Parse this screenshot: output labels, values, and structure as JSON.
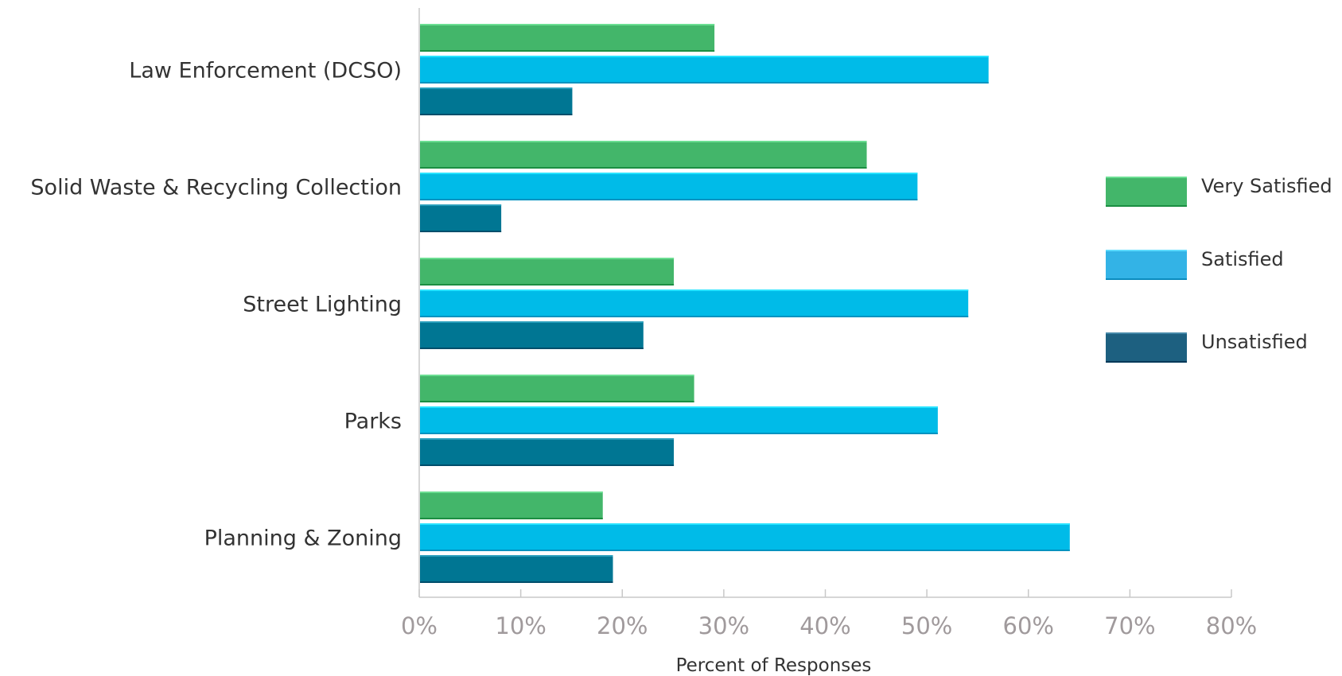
{
  "chart_data": {
    "type": "bar",
    "orientation": "horizontal",
    "categories": [
      "Law Enforcement (DCSO)",
      "Solid Waste & Recycling Collection",
      "Street Lighting",
      "Parks",
      "Planning & Zoning"
    ],
    "series": [
      {
        "name": "Very Satisfied",
        "color": "#43b66a",
        "values": [
          29,
          44,
          25,
          27,
          18
        ]
      },
      {
        "name": "Satisfied",
        "color": "#00bbe8",
        "values": [
          56,
          49,
          54,
          51,
          64
        ]
      },
      {
        "name": "Unsatisfied",
        "color": "#007693",
        "values": [
          15,
          8,
          22,
          25,
          19
        ]
      }
    ],
    "legend_colors": [
      "#43b66a",
      "#33b3e6",
      "#1d6080"
    ],
    "xlim": [
      0,
      80
    ],
    "xticks": [
      0,
      10,
      20,
      30,
      40,
      50,
      60,
      70,
      80
    ],
    "tick_labels": [
      "0%",
      "10%",
      "20%",
      "30%",
      "40%",
      "50%",
      "60%",
      "70%",
      "80%"
    ],
    "xlabel": "Percent of Responses",
    "ylabel": "",
    "title": "",
    "grid": false,
    "legend_position": "right"
  }
}
